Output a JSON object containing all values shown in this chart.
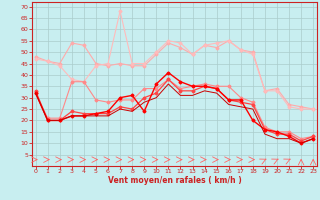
{
  "xlabel": "Vent moyen/en rafales ( km/h )",
  "background_color": "#c8eef0",
  "grid_color": "#aacccc",
  "x": [
    0,
    1,
    2,
    3,
    4,
    5,
    6,
    7,
    8,
    9,
    10,
    11,
    12,
    13,
    14,
    15,
    16,
    17,
    18,
    19,
    20,
    21,
    22,
    23
  ],
  "series": [
    {
      "y": [
        48,
        46,
        45,
        54,
        53,
        45,
        44,
        45,
        44,
        44,
        49,
        54,
        52,
        49,
        53,
        52,
        55,
        51,
        50,
        33,
        34,
        27,
        26,
        25
      ],
      "color": "#ffaaaa",
      "lw": 0.8,
      "marker": true
    },
    {
      "y": [
        47,
        46,
        44,
        38,
        37,
        44,
        45,
        68,
        45,
        45,
        50,
        55,
        54,
        49,
        53,
        54,
        55,
        51,
        49,
        33,
        33,
        26,
        25,
        25
      ],
      "color": "#ffbbbb",
      "lw": 0.8,
      "marker": true
    },
    {
      "y": [
        32,
        21,
        21,
        37,
        37,
        29,
        28,
        29,
        29,
        34,
        34,
        38,
        34,
        35,
        36,
        35,
        35,
        30,
        28,
        17,
        15,
        15,
        12,
        13
      ],
      "color": "#ff8888",
      "lw": 0.8,
      "marker": true
    },
    {
      "y": [
        33,
        20,
        20,
        24,
        23,
        23,
        23,
        26,
        25,
        30,
        32,
        38,
        33,
        33,
        35,
        34,
        29,
        28,
        27,
        16,
        14,
        14,
        11,
        13
      ],
      "color": "#ff4444",
      "lw": 0.9,
      "marker": true
    },
    {
      "y": [
        32,
        20,
        20,
        22,
        22,
        23,
        24,
        30,
        31,
        24,
        36,
        41,
        37,
        35,
        35,
        34,
        29,
        29,
        20,
        16,
        15,
        13,
        10,
        12
      ],
      "color": "#ff0000",
      "lw": 1.0,
      "marker": true
    },
    {
      "y": [
        32,
        20,
        20,
        22,
        22,
        22,
        22,
        25,
        24,
        28,
        30,
        36,
        31,
        31,
        33,
        32,
        27,
        26,
        25,
        14,
        12,
        12,
        10,
        12
      ],
      "color": "#cc0000",
      "lw": 0.7,
      "marker": false
    }
  ],
  "wind_dir": [
    0,
    0,
    0,
    0,
    0,
    0,
    0,
    0,
    0,
    0,
    0,
    0,
    0,
    0,
    0,
    0,
    0,
    0,
    0,
    45,
    45,
    45,
    90,
    90
  ],
  "ylim": [
    0,
    72
  ],
  "yticks": [
    5,
    10,
    15,
    20,
    25,
    30,
    35,
    40,
    45,
    50,
    55,
    60,
    65,
    70
  ],
  "xlim": [
    -0.3,
    23.3
  ],
  "xticks": [
    0,
    1,
    2,
    3,
    4,
    5,
    6,
    7,
    8,
    9,
    10,
    11,
    12,
    13,
    14,
    15,
    16,
    17,
    18,
    19,
    20,
    21,
    22,
    23
  ],
  "arrow_color": "#ff6666",
  "spine_color": "#cc2222",
  "tick_color": "#cc2222",
  "label_color": "#cc2222"
}
